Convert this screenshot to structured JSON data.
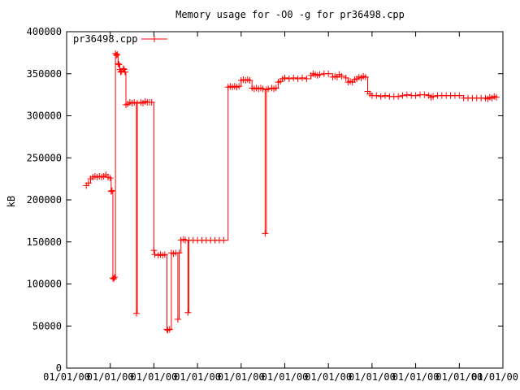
{
  "chart_data": {
    "type": "line",
    "title": "Memory usage for -O0 -g for pr36498.cpp",
    "xlabel": "",
    "ylabel": "kB",
    "ylim": [
      0,
      400000
    ],
    "xlim": [
      0,
      1.0
    ],
    "yticks": [
      0,
      50000,
      100000,
      150000,
      200000,
      250000,
      300000,
      350000,
      400000
    ],
    "ytick_labels": [
      "0",
      "50000",
      "100000",
      "150000",
      "200000",
      "250000",
      "300000",
      "350000",
      "400000"
    ],
    "xticks": [
      0,
      0.1,
      0.2,
      0.3,
      0.4,
      0.5,
      0.6,
      0.7,
      0.8,
      0.9,
      1.0
    ],
    "xtick_labels": [
      "01/01/00",
      "01/01/00",
      "01/01/00",
      "01/01/00",
      "01/01/00",
      "01/01/00",
      "01/01/00",
      "01/01/00",
      "01/01/00",
      "01/01/00",
      "01/01/00"
    ],
    "grid": false,
    "legend_position": "top-left",
    "series": [
      {
        "name": "pr36498.cpp",
        "color": "#ff0000",
        "marker": "plus",
        "points": [
          [
            0.045,
            217000
          ],
          [
            0.05,
            220000
          ],
          [
            0.055,
            225000
          ],
          [
            0.06,
            227000
          ],
          [
            0.065,
            228000
          ],
          [
            0.07,
            227000
          ],
          [
            0.075,
            228000
          ],
          [
            0.08,
            227000
          ],
          [
            0.085,
            228000
          ],
          [
            0.09,
            230000
          ],
          [
            0.095,
            227000
          ],
          [
            0.1,
            226000
          ],
          [
            0.102,
            210000
          ],
          [
            0.104,
            211000
          ],
          [
            0.106,
            107000
          ],
          [
            0.108,
            106000
          ],
          [
            0.11,
            108000
          ],
          [
            0.112,
            374000
          ],
          [
            0.114,
            372000
          ],
          [
            0.116,
            373000
          ],
          [
            0.118,
            362000
          ],
          [
            0.12,
            361000
          ],
          [
            0.122,
            355000
          ],
          [
            0.124,
            352000
          ],
          [
            0.126,
            353000
          ],
          [
            0.13,
            356000
          ],
          [
            0.132,
            355000
          ],
          [
            0.134,
            352000
          ],
          [
            0.136,
            313000
          ],
          [
            0.14,
            314000
          ],
          [
            0.145,
            316000
          ],
          [
            0.15,
            315000
          ],
          [
            0.155,
            316000
          ],
          [
            0.16,
            65000
          ],
          [
            0.162,
            315000
          ],
          [
            0.17,
            316000
          ],
          [
            0.175,
            315000
          ],
          [
            0.18,
            317000
          ],
          [
            0.185,
            316000
          ],
          [
            0.19,
            316000
          ],
          [
            0.195,
            316000
          ],
          [
            0.2,
            140000
          ],
          [
            0.202,
            135000
          ],
          [
            0.21,
            134000
          ],
          [
            0.215,
            135000
          ],
          [
            0.22,
            134000
          ],
          [
            0.225,
            135000
          ],
          [
            0.23,
            46000
          ],
          [
            0.232,
            45000
          ],
          [
            0.236,
            46000
          ],
          [
            0.24,
            137000
          ],
          [
            0.245,
            136000
          ],
          [
            0.25,
            137000
          ],
          [
            0.255,
            58000
          ],
          [
            0.258,
            137000
          ],
          [
            0.262,
            152000
          ],
          [
            0.268,
            153000
          ],
          [
            0.272,
            152000
          ],
          [
            0.278,
            66000
          ],
          [
            0.28,
            152000
          ],
          [
            0.29,
            152000
          ],
          [
            0.3,
            152000
          ],
          [
            0.31,
            152000
          ],
          [
            0.32,
            152000
          ],
          [
            0.33,
            152000
          ],
          [
            0.34,
            152000
          ],
          [
            0.35,
            152000
          ],
          [
            0.36,
            152000
          ],
          [
            0.37,
            334000
          ],
          [
            0.375,
            335000
          ],
          [
            0.38,
            334000
          ],
          [
            0.385,
            335000
          ],
          [
            0.39,
            334000
          ],
          [
            0.395,
            335000
          ],
          [
            0.4,
            342000
          ],
          [
            0.405,
            343000
          ],
          [
            0.41,
            342000
          ],
          [
            0.415,
            343000
          ],
          [
            0.42,
            342000
          ],
          [
            0.425,
            333000
          ],
          [
            0.43,
            332000
          ],
          [
            0.435,
            333000
          ],
          [
            0.44,
            332000
          ],
          [
            0.445,
            333000
          ],
          [
            0.45,
            332000
          ],
          [
            0.455,
            160000
          ],
          [
            0.458,
            331000
          ],
          [
            0.462,
            332000
          ],
          [
            0.47,
            333000
          ],
          [
            0.475,
            332000
          ],
          [
            0.48,
            333000
          ],
          [
            0.485,
            340000
          ],
          [
            0.49,
            341000
          ],
          [
            0.495,
            344000
          ],
          [
            0.5,
            345000
          ],
          [
            0.51,
            344000
          ],
          [
            0.52,
            345000
          ],
          [
            0.53,
            344000
          ],
          [
            0.54,
            345000
          ],
          [
            0.55,
            344000
          ],
          [
            0.56,
            348000
          ],
          [
            0.565,
            350000
          ],
          [
            0.57,
            349000
          ],
          [
            0.575,
            348000
          ],
          [
            0.58,
            349000
          ],
          [
            0.59,
            350000
          ],
          [
            0.6,
            350000
          ],
          [
            0.61,
            346000
          ],
          [
            0.615,
            347000
          ],
          [
            0.62,
            346000
          ],
          [
            0.625,
            349000
          ],
          [
            0.63,
            347000
          ],
          [
            0.64,
            345000
          ],
          [
            0.645,
            340000
          ],
          [
            0.65,
            341000
          ],
          [
            0.655,
            340000
          ],
          [
            0.66,
            343000
          ],
          [
            0.665,
            344000
          ],
          [
            0.67,
            346000
          ],
          [
            0.675,
            345000
          ],
          [
            0.68,
            347000
          ],
          [
            0.685,
            346000
          ],
          [
            0.69,
            329000
          ],
          [
            0.695,
            326000
          ],
          [
            0.7,
            324000
          ],
          [
            0.71,
            324000
          ],
          [
            0.72,
            323000
          ],
          [
            0.73,
            324000
          ],
          [
            0.74,
            323000
          ],
          [
            0.75,
            323000
          ],
          [
            0.76,
            323000
          ],
          [
            0.77,
            324000
          ],
          [
            0.78,
            325000
          ],
          [
            0.79,
            324000
          ],
          [
            0.8,
            324000
          ],
          [
            0.81,
            325000
          ],
          [
            0.82,
            325000
          ],
          [
            0.83,
            324000
          ],
          [
            0.835,
            322000
          ],
          [
            0.84,
            323000
          ],
          [
            0.85,
            324000
          ],
          [
            0.86,
            324000
          ],
          [
            0.87,
            324000
          ],
          [
            0.88,
            324000
          ],
          [
            0.89,
            324000
          ],
          [
            0.9,
            324000
          ],
          [
            0.91,
            321000
          ],
          [
            0.92,
            321000
          ],
          [
            0.93,
            321000
          ],
          [
            0.94,
            321000
          ],
          [
            0.95,
            321000
          ],
          [
            0.96,
            321000
          ],
          [
            0.965,
            320000
          ],
          [
            0.97,
            322000
          ],
          [
            0.975,
            321000
          ],
          [
            0.98,
            323000
          ],
          [
            0.985,
            322000
          ]
        ]
      }
    ]
  }
}
